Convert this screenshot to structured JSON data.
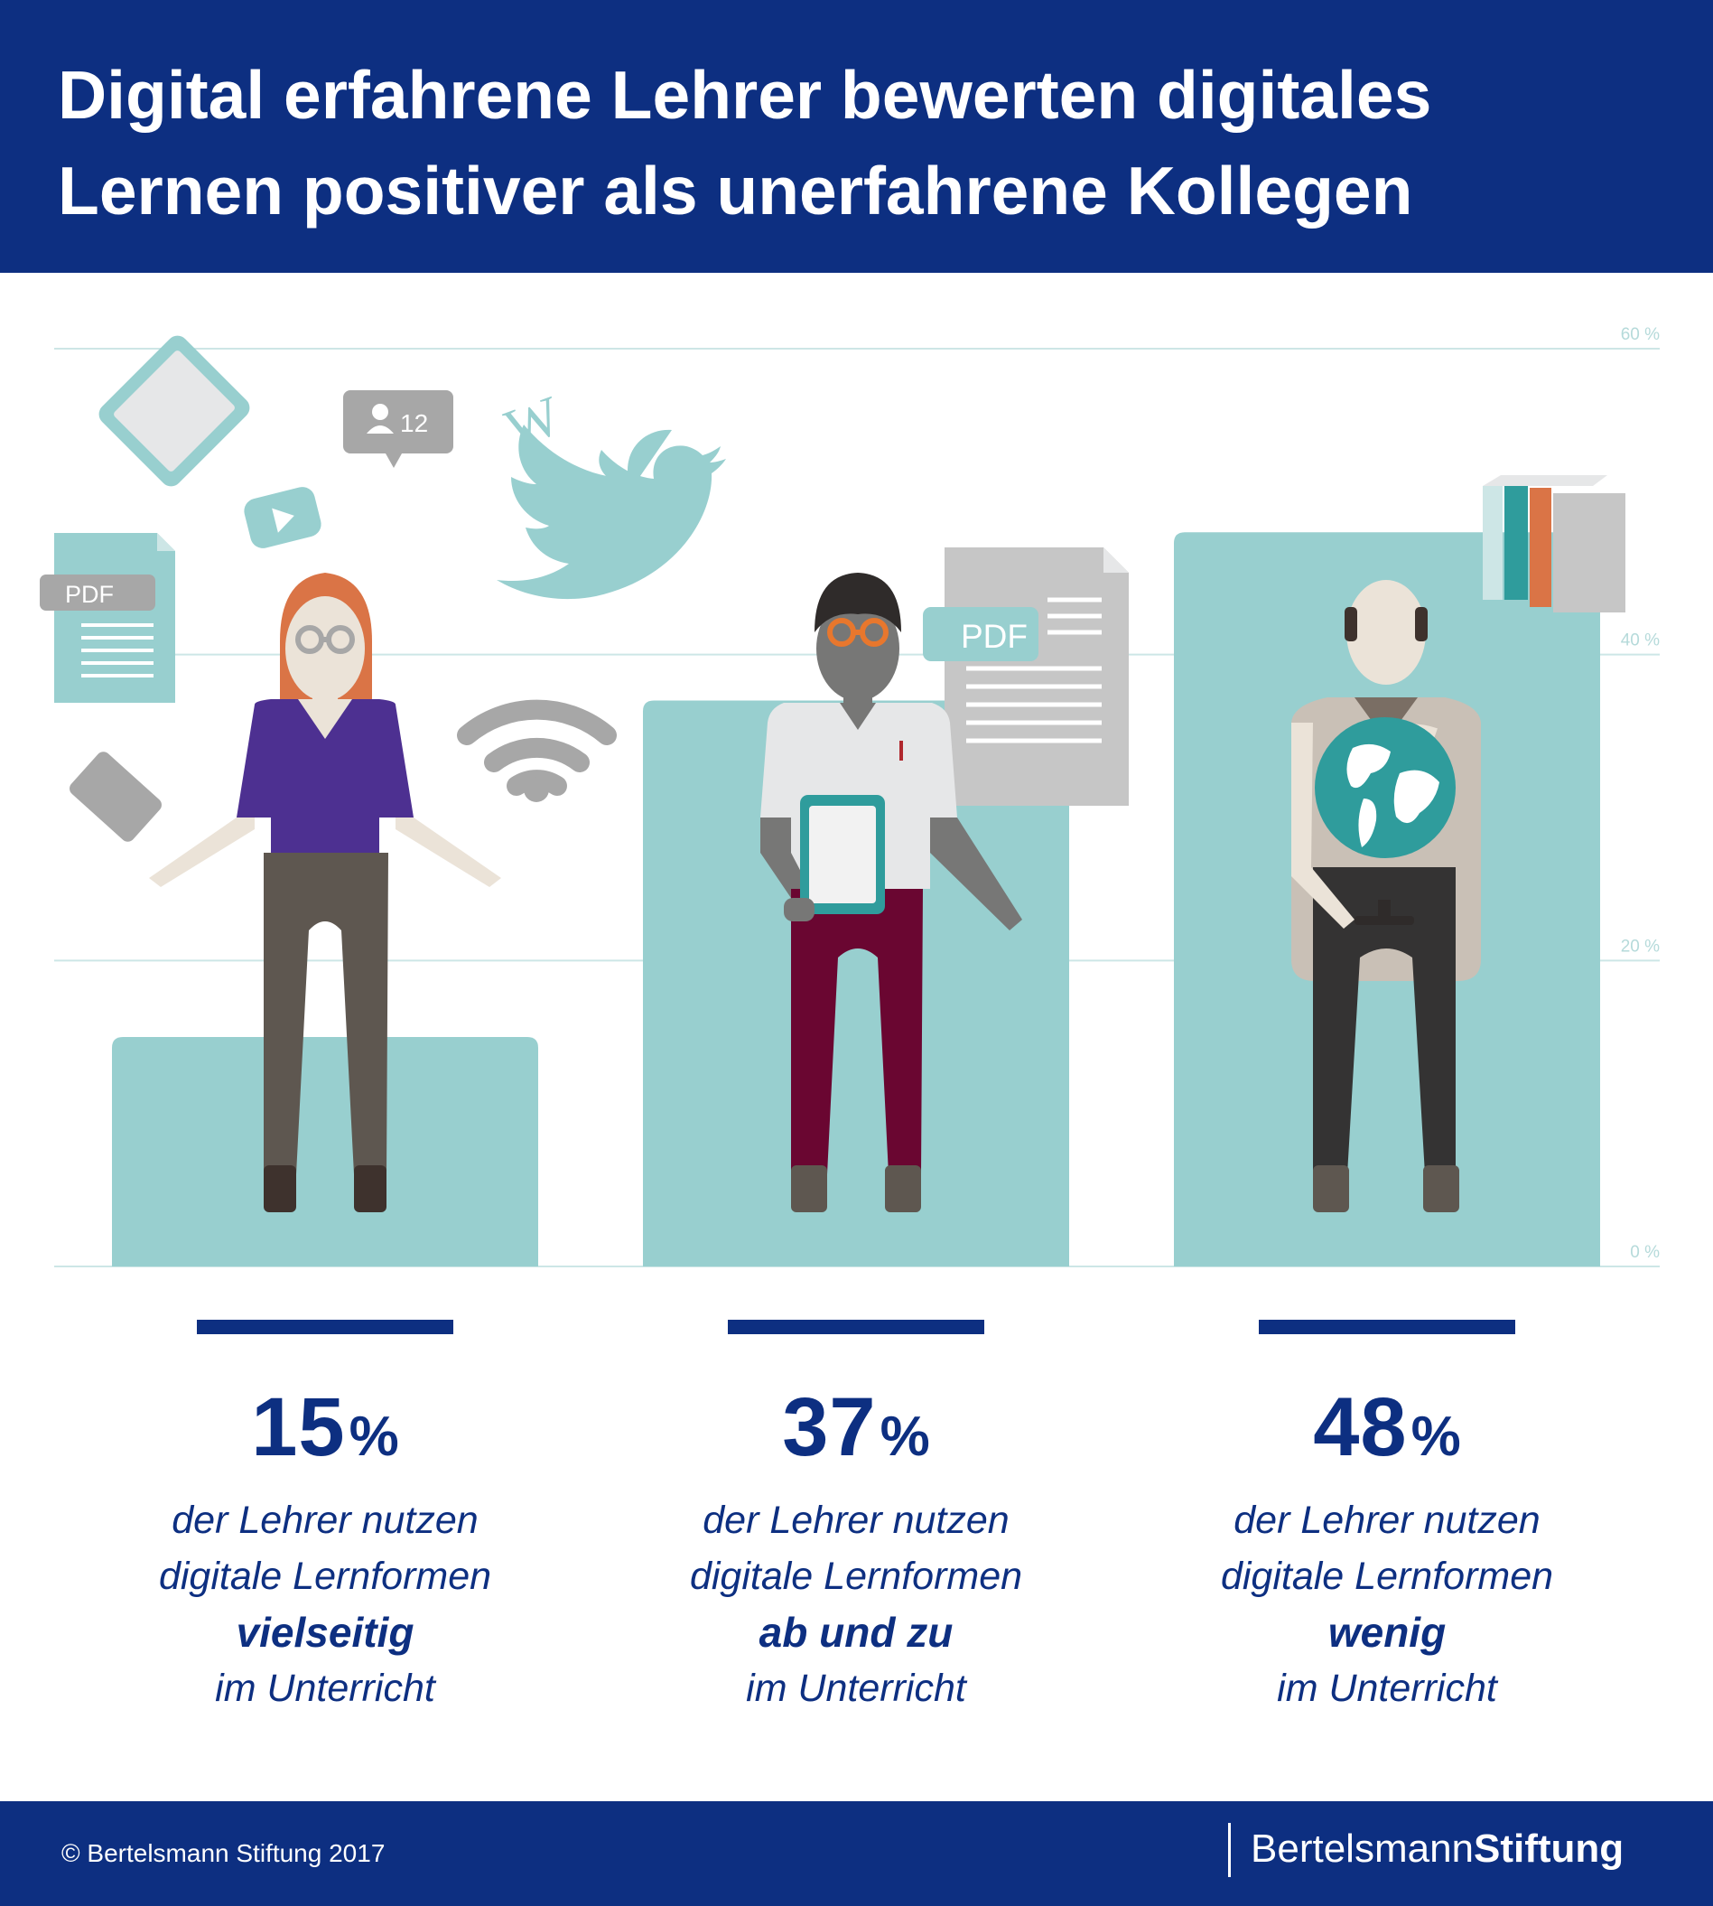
{
  "header": {
    "title": "Digital erfahrene Lehrer bewerten digitales Lernen positiver als unerfahrene Kollegen"
  },
  "chart_data": {
    "type": "bar",
    "categories": [
      "vielseitig",
      "ab und zu",
      "wenig"
    ],
    "values": [
      15,
      37,
      48
    ],
    "ylim": [
      0,
      60
    ],
    "yticks": [
      {
        "value": 0,
        "label": "0 %"
      },
      {
        "value": 20,
        "label": "20 %"
      },
      {
        "value": 40,
        "label": "40 %"
      },
      {
        "value": 60,
        "label": "60 %"
      }
    ],
    "grid": true,
    "bar_color": "#98cfcf",
    "grid_color": "#cde6e6"
  },
  "stats": [
    {
      "value": "15",
      "unit": "%",
      "line1": "der Lehrer nutzen",
      "line2": "digitale Lernformen",
      "emphasis": "vielseitig",
      "line4": "im Unterricht"
    },
    {
      "value": "37",
      "unit": "%",
      "line1": "der Lehrer nutzen",
      "line2": "digitale Lernformen",
      "emphasis": "ab und zu",
      "line4": "im Unterricht"
    },
    {
      "value": "48",
      "unit": "%",
      "line1": "der Lehrer nutzen",
      "line2": "digitale Lernformen",
      "emphasis": "wenig",
      "line4": "im Unterricht"
    }
  ],
  "illustrations": {
    "pdf_label": "PDF",
    "follower_count": "12",
    "wikipedia_glyph": "W",
    "icons": [
      "tablet-icon",
      "pdf-document-icon",
      "follower-badge-icon",
      "video-play-icon",
      "wikipedia-icon",
      "twitter-bird-icon",
      "wifi-icon",
      "smartphone-icon",
      "books-icon",
      "globe-icon"
    ],
    "colors": {
      "teal": "#98cfcf",
      "gray": "#a7a7a7",
      "navy": "#0d2f81",
      "purple": "#4d3091",
      "maroon": "#6a0631",
      "hair": "#da7446"
    }
  },
  "footer": {
    "copyright": "© Bertelsmann Stiftung 2017",
    "brand_regular": "Bertelsmann",
    "brand_bold": "Stiftung"
  }
}
